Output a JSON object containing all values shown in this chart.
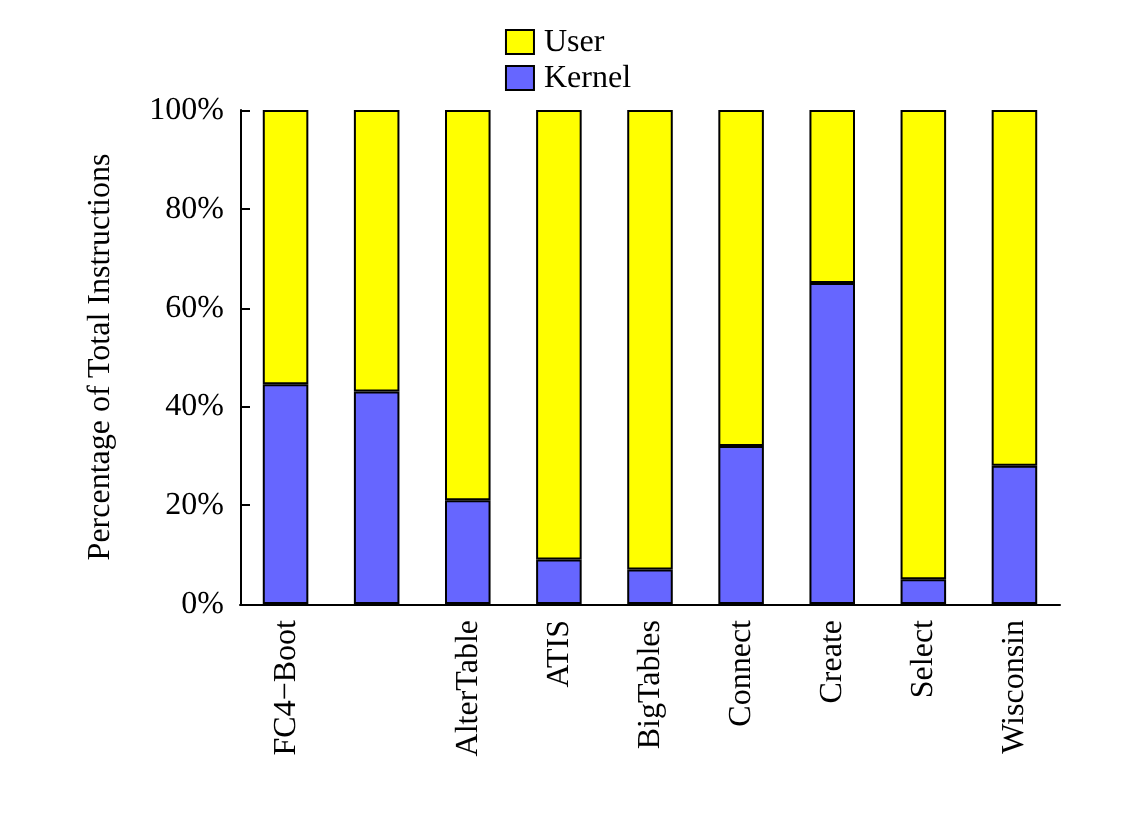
{
  "chart_data": {
    "type": "bar",
    "stacked": true,
    "ylabel": "Percentage of Total Instructions",
    "categories": [
      "FC4−Boot",
      null,
      "AlterTable",
      "ATIS",
      "BigTables",
      "Connect",
      "Create",
      "Select",
      "Wisconsin"
    ],
    "series": [
      {
        "name": "Kernel",
        "color": "#6666ff",
        "values": [
          44.5,
          43,
          21,
          9,
          7,
          32,
          65,
          5,
          28
        ]
      },
      {
        "name": "User",
        "color": "#ffff00",
        "values": [
          55.5,
          57,
          79,
          91,
          93,
          68,
          35,
          95,
          72
        ]
      }
    ],
    "ylim": [
      0,
      100
    ],
    "yticks": [
      {
        "value": 0,
        "label": "0%"
      },
      {
        "value": 20,
        "label": "20%"
      },
      {
        "value": 40,
        "label": "40%"
      },
      {
        "value": 60,
        "label": "60%"
      },
      {
        "value": 80,
        "label": "80%"
      },
      {
        "value": 100,
        "label": "100%"
      }
    ],
    "grid": false,
    "legend": "top"
  }
}
